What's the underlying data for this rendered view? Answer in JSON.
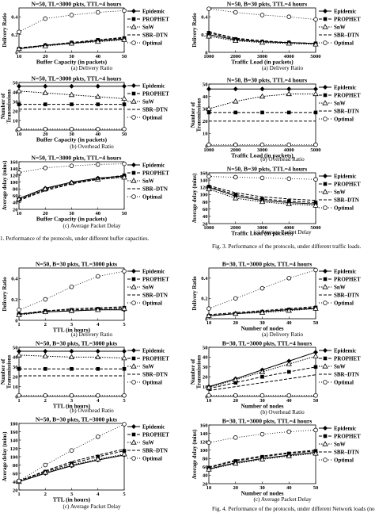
{
  "figure_captions": {
    "fig2": "1.   Performance of the protocols, under different buffer capacities.",
    "fig3": "Fig. 3.   Performance of the protocols, under different traffic loads.",
    "fig4": "Fig. 4.   Performance of the protocols, under different Network loads (no"
  },
  "legend_names": [
    "Epidemic",
    "PROPHET",
    "SnW",
    "SBR–DTN",
    "Optimal"
  ],
  "chart_data": [
    {
      "id": "p1",
      "type": "line",
      "caption": "(a) Delivery Ratio",
      "title": "N=50, TL=3000 pkts, TTL=4 hours",
      "xlabel": "Buffer Capacity (in packets)",
      "ylabel": "Delivery Ratio",
      "x": [
        10,
        20,
        30,
        40,
        50
      ],
      "xlim": [
        10,
        50
      ],
      "ylim": [
        0,
        0.5
      ],
      "xticks": [
        "10",
        "20",
        "30",
        "40",
        "50"
      ],
      "yticks": [
        "0",
        "0.2",
        "0.4"
      ],
      "ytick_values": [
        0,
        0.2,
        0.4
      ],
      "series": [
        {
          "name": "Epidemic",
          "values": [
            0.04,
            0.08,
            0.1,
            0.13,
            0.15
          ]
        },
        {
          "name": "PROPHET",
          "values": [
            0.04,
            0.08,
            0.11,
            0.14,
            0.16
          ]
        },
        {
          "name": "SnW",
          "values": [
            0.04,
            0.07,
            0.1,
            0.12,
            0.14
          ]
        },
        {
          "name": "SBR–DTN",
          "values": [
            0.05,
            0.08,
            0.11,
            0.14,
            0.17
          ]
        },
        {
          "name": "Optimal",
          "values": [
            0.23,
            0.38,
            0.42,
            0.45,
            0.47
          ]
        }
      ]
    },
    {
      "id": "p2",
      "type": "line",
      "caption": "(b) Overhead Ratio",
      "title": "N=50, TL=3000 pkts, TTL=4 hours",
      "xlabel": "Buffer Capacity (in packets)",
      "ylabel": "Number of Transmissions",
      "x": [
        10,
        20,
        30,
        40,
        50
      ],
      "xlim": [
        10,
        50
      ],
      "ylim": [
        0,
        50
      ],
      "xticks": [
        "10",
        "20",
        "30",
        "40",
        "50"
      ],
      "yticks": [
        "0",
        "10",
        "20",
        "30",
        "40",
        "50"
      ],
      "ytick_values": [
        0,
        10,
        20,
        30,
        40,
        50
      ],
      "series": [
        {
          "name": "Epidemic",
          "values": [
            46,
            46,
            46,
            46,
            46
          ]
        },
        {
          "name": "PROPHET",
          "values": [
            27,
            27,
            27,
            27,
            27
          ]
        },
        {
          "name": "SnW",
          "values": [
            41,
            39,
            37,
            35,
            33
          ]
        },
        {
          "name": "SBR–DTN",
          "values": [
            22,
            22,
            22,
            22,
            22
          ]
        },
        {
          "name": "Optimal",
          "values": [
            1,
            1,
            1,
            1,
            1
          ]
        }
      ]
    },
    {
      "id": "p3",
      "type": "line",
      "caption": "(c) Average Packet Delay",
      "title": "N=50, TL=3000 pkts, TTL=4 hours",
      "xlabel": "Buffer Capacity (in packets)",
      "ylabel": "Average delay (mins)",
      "x": [
        10,
        20,
        30,
        40,
        50
      ],
      "xlim": [
        10,
        50
      ],
      "ylim": [
        20,
        160
      ],
      "xticks": [
        "10",
        "20",
        "30",
        "40",
        "50"
      ],
      "yticks": [
        "20",
        "40",
        "60",
        "80",
        "100",
        "120",
        "140",
        "160"
      ],
      "ytick_values": [
        20,
        40,
        60,
        80,
        100,
        120,
        140,
        160
      ],
      "series": [
        {
          "name": "Epidemic",
          "values": [
            52,
            82,
            100,
            112,
            118
          ]
        },
        {
          "name": "PROPHET",
          "values": [
            48,
            78,
            97,
            110,
            120
          ]
        },
        {
          "name": "SnW",
          "values": [
            50,
            80,
            98,
            108,
            114
          ]
        },
        {
          "name": "SBR–DTN",
          "values": [
            46,
            75,
            95,
            108,
            116
          ]
        },
        {
          "name": "Optimal",
          "values": [
            128,
            142,
            148,
            152,
            154
          ]
        }
      ]
    },
    {
      "id": "p4",
      "type": "line",
      "caption": "(a) Delivery Ratio",
      "title": "N=50, B=30 pkts, TTL=4 hours",
      "xlabel": "Traffic Load (in packets)",
      "ylabel": "Delivery Ratio",
      "x": [
        1000,
        2000,
        3000,
        4000,
        5000
      ],
      "xlim": [
        1000,
        5000
      ],
      "ylim": [
        0,
        0.5
      ],
      "xticks": [
        "1000",
        "2000",
        "3000",
        "4000",
        "5000"
      ],
      "yticks": [
        "0",
        "0.2",
        "0.4"
      ],
      "ytick_values": [
        0,
        0.2,
        0.4
      ],
      "series": [
        {
          "name": "Epidemic",
          "values": [
            0.2,
            0.14,
            0.12,
            0.11,
            0.1
          ]
        },
        {
          "name": "PROPHET",
          "values": [
            0.22,
            0.15,
            0.12,
            0.11,
            0.1
          ]
        },
        {
          "name": "SnW",
          "values": [
            0.18,
            0.13,
            0.11,
            0.1,
            0.09
          ]
        },
        {
          "name": "SBR–DTN",
          "values": [
            0.23,
            0.16,
            0.13,
            0.11,
            0.1
          ]
        },
        {
          "name": "Optimal",
          "values": [
            0.49,
            0.45,
            0.42,
            0.4,
            0.37
          ]
        }
      ]
    },
    {
      "id": "p5",
      "type": "line",
      "caption": "(b) Overhead Ratio",
      "title": "N=50, B=30 pkts, TTL=4 hours",
      "xlabel": "Traffic Load (in packets)",
      "ylabel": "Number of Transmissions",
      "x": [
        1000,
        2000,
        3000,
        4000,
        5000
      ],
      "xlim": [
        1000,
        5000
      ],
      "ylim": [
        0,
        50
      ],
      "xticks": [
        "1000",
        "2000",
        "3000",
        "4000",
        "5000"
      ],
      "yticks": [
        "0",
        "10",
        "20",
        "30",
        "40",
        "50"
      ],
      "ytick_values": [
        0,
        10,
        20,
        30,
        40,
        50
      ],
      "series": [
        {
          "name": "Epidemic",
          "values": [
            46,
            46,
            46,
            46,
            46
          ]
        },
        {
          "name": "PROPHET",
          "values": [
            27,
            27,
            27,
            27,
            27
          ]
        },
        {
          "name": "SnW",
          "values": [
            30,
            36,
            40,
            42,
            42
          ]
        },
        {
          "name": "SBR–DTN",
          "values": [
            20,
            20,
            20,
            20,
            20
          ]
        },
        {
          "name": "Optimal",
          "values": [
            1,
            1,
            1,
            1,
            1
          ]
        }
      ]
    },
    {
      "id": "p6",
      "type": "line",
      "caption": "(c) Average Packet Delay",
      "title": "N=50, B=30 pkts, TTL=4 hours",
      "xlabel": "Traffic Load (in packets)",
      "ylabel": "Average delay (mins)",
      "x": [
        1000,
        2000,
        3000,
        4000,
        5000
      ],
      "xlim": [
        1000,
        5000
      ],
      "ylim": [
        20,
        160
      ],
      "xticks": [
        "1000",
        "2000",
        "3000",
        "4000",
        "5000"
      ],
      "yticks": [
        "20",
        "40",
        "60",
        "80",
        "100",
        "120",
        "140",
        "160"
      ],
      "ytick_values": [
        20,
        40,
        60,
        80,
        100,
        120,
        140,
        160
      ],
      "series": [
        {
          "name": "Epidemic",
          "values": [
            120,
            96,
            84,
            78,
            74
          ]
        },
        {
          "name": "PROPHET",
          "values": [
            122,
            100,
            88,
            82,
            78
          ]
        },
        {
          "name": "SnW",
          "values": [
            115,
            90,
            80,
            74,
            70
          ]
        },
        {
          "name": "SBR–DTN",
          "values": [
            125,
            105,
            94,
            88,
            84
          ]
        },
        {
          "name": "Optimal",
          "values": [
            150,
            148,
            146,
            144,
            142
          ]
        }
      ]
    },
    {
      "id": "p7",
      "type": "line",
      "caption": "(a) Delivery Ratio",
      "title": "N=50, B=30 pkts, TL=3000 pkts",
      "xlabel": "TTL (in hours)",
      "ylabel": "Delivery Ratio",
      "x": [
        1,
        2,
        3,
        4,
        5
      ],
      "xlim": [
        1,
        5
      ],
      "ylim": [
        0,
        0.5
      ],
      "xticks": [
        "1",
        "2",
        "3",
        "4",
        "5"
      ],
      "yticks": [
        "0",
        "0.2",
        "0.4"
      ],
      "ytick_values": [
        0,
        0.2,
        0.4
      ],
      "series": [
        {
          "name": "Epidemic",
          "values": [
            0.06,
            0.08,
            0.09,
            0.1,
            0.1
          ]
        },
        {
          "name": "PROPHET",
          "values": [
            0.06,
            0.09,
            0.1,
            0.11,
            0.12
          ]
        },
        {
          "name": "SnW",
          "values": [
            0.05,
            0.08,
            0.09,
            0.1,
            0.11
          ]
        },
        {
          "name": "SBR–DTN",
          "values": [
            0.06,
            0.09,
            0.11,
            0.12,
            0.13
          ]
        },
        {
          "name": "Optimal",
          "values": [
            0.1,
            0.2,
            0.32,
            0.42,
            0.47
          ]
        }
      ]
    },
    {
      "id": "p8",
      "type": "line",
      "caption": "(b) Overhead Ratio",
      "title": "N=50, B=30 pkts, TL=3000 pkts",
      "xlabel": "TTL (in hours)",
      "ylabel": "Number of Transmissions",
      "x": [
        1,
        2,
        3,
        4,
        5
      ],
      "xlim": [
        1,
        5
      ],
      "ylim": [
        0,
        50
      ],
      "xticks": [
        "1",
        "2",
        "3",
        "4",
        "5"
      ],
      "yticks": [
        "0",
        "10",
        "20",
        "30",
        "40",
        "50"
      ],
      "ytick_values": [
        0,
        10,
        20,
        30,
        40,
        50
      ],
      "series": [
        {
          "name": "Epidemic",
          "values": [
            46,
            46,
            46,
            46,
            46
          ]
        },
        {
          "name": "PROPHET",
          "values": [
            28,
            28,
            28,
            28,
            28
          ]
        },
        {
          "name": "SnW",
          "values": [
            42,
            41,
            40,
            40,
            39
          ]
        },
        {
          "name": "SBR–DTN",
          "values": [
            21,
            21,
            21,
            21,
            21
          ]
        },
        {
          "name": "Optimal",
          "values": [
            1,
            1,
            1,
            1,
            1
          ]
        }
      ]
    },
    {
      "id": "p9",
      "type": "line",
      "caption": "(c) Average Packet Delay",
      "title": "N=50, B=30 pkts, TL=3000 pkts",
      "xlabel": "TTL (in hours)",
      "ylabel": "Average delay (mins)",
      "x": [
        1,
        2,
        3,
        4,
        5
      ],
      "xlim": [
        1,
        5
      ],
      "ylim": [
        20,
        180
      ],
      "xticks": [
        "1",
        "2",
        "3",
        "4",
        "5"
      ],
      "yticks": [
        "20",
        "40",
        "60",
        "80",
        "100",
        "120",
        "140",
        "160",
        "180"
      ],
      "ytick_values": [
        20,
        40,
        60,
        80,
        100,
        120,
        140,
        160,
        180
      ],
      "series": [
        {
          "name": "Epidemic",
          "values": [
            40,
            60,
            78,
            92,
            104
          ]
        },
        {
          "name": "PROPHET",
          "values": [
            42,
            64,
            84,
            100,
            114
          ]
        },
        {
          "name": "SnW",
          "values": [
            40,
            62,
            80,
            94,
            106
          ]
        },
        {
          "name": "SBR–DTN",
          "values": [
            42,
            66,
            88,
            104,
            118
          ]
        },
        {
          "name": "Optimal",
          "values": [
            42,
            80,
            115,
            148,
            178
          ]
        }
      ]
    },
    {
      "id": "p10",
      "type": "line",
      "caption": "(a) Delivery Ratio",
      "title": "B=30, TL=3000 pkts, TTL=4 hours",
      "xlabel": "Number of nodes",
      "ylabel": "Delivery Ratio",
      "x": [
        10,
        20,
        30,
        40,
        50
      ],
      "xlim": [
        10,
        50
      ],
      "ylim": [
        0,
        0.5
      ],
      "xticks": [
        "10",
        "20",
        "30",
        "40",
        "50"
      ],
      "yticks": [
        "0",
        "0.2",
        "0.4"
      ],
      "ytick_values": [
        0,
        0.2,
        0.4
      ],
      "series": [
        {
          "name": "Epidemic",
          "values": [
            0.03,
            0.05,
            0.07,
            0.09,
            0.1
          ]
        },
        {
          "name": "PROPHET",
          "values": [
            0.03,
            0.05,
            0.07,
            0.09,
            0.11
          ]
        },
        {
          "name": "SnW",
          "values": [
            0.03,
            0.05,
            0.06,
            0.08,
            0.1
          ]
        },
        {
          "name": "SBR–DTN",
          "values": [
            0.04,
            0.06,
            0.08,
            0.1,
            0.12
          ]
        },
        {
          "name": "Optimal",
          "values": [
            0.1,
            0.2,
            0.3,
            0.4,
            0.48
          ]
        }
      ]
    },
    {
      "id": "p11",
      "type": "line",
      "caption": "(b) Overhead Ratio",
      "title": "B=30, TL=3000 pkts, TTL=4 hours",
      "xlabel": "Number of nodes",
      "ylabel": "Number of Transmissions",
      "x": [
        10,
        20,
        30,
        40,
        50
      ],
      "xlim": [
        10,
        50
      ],
      "ylim": [
        0,
        50
      ],
      "xticks": [
        "10",
        "20",
        "30",
        "40",
        "50"
      ],
      "yticks": [
        "0",
        "10",
        "20",
        "30",
        "40",
        "50"
      ],
      "ytick_values": [
        0,
        10,
        20,
        30,
        40,
        50
      ],
      "series": [
        {
          "name": "Epidemic",
          "values": [
            10,
            18,
            27,
            36,
            45
          ]
        },
        {
          "name": "PROPHET",
          "values": [
            8,
            14,
            20,
            25,
            30
          ]
        },
        {
          "name": "SnW",
          "values": [
            9,
            17,
            25,
            33,
            41
          ]
        },
        {
          "name": "SBR–DTN",
          "values": [
            6,
            10,
            14,
            18,
            22
          ]
        },
        {
          "name": "Optimal",
          "values": [
            1,
            1,
            1,
            1,
            1
          ]
        }
      ]
    },
    {
      "id": "p12",
      "type": "line",
      "caption": "(c) Average Packet Delay",
      "title": "B=30, TL=3000 pkts, TTL=4 hours",
      "xlabel": "Number of nodes",
      "ylabel": "Average delay (mins)",
      "x": [
        10,
        20,
        30,
        40,
        50
      ],
      "xlim": [
        10,
        50
      ],
      "ylim": [
        20,
        160
      ],
      "xticks": [
        "10",
        "20",
        "30",
        "40",
        "50"
      ],
      "yticks": [
        "20",
        "40",
        "60",
        "80",
        "100",
        "120",
        "140",
        "160"
      ],
      "ytick_values": [
        20,
        40,
        60,
        80,
        100,
        120,
        140,
        160
      ],
      "series": [
        {
          "name": "Epidemic",
          "values": [
            55,
            70,
            80,
            88,
            95
          ]
        },
        {
          "name": "PROPHET",
          "values": [
            58,
            74,
            84,
            92,
            98
          ]
        },
        {
          "name": "SnW",
          "values": [
            54,
            68,
            78,
            86,
            92
          ]
        },
        {
          "name": "SBR–DTN",
          "values": [
            60,
            76,
            86,
            94,
            100
          ]
        },
        {
          "name": "Optimal",
          "values": [
            118,
            130,
            138,
            144,
            148
          ]
        }
      ]
    }
  ]
}
